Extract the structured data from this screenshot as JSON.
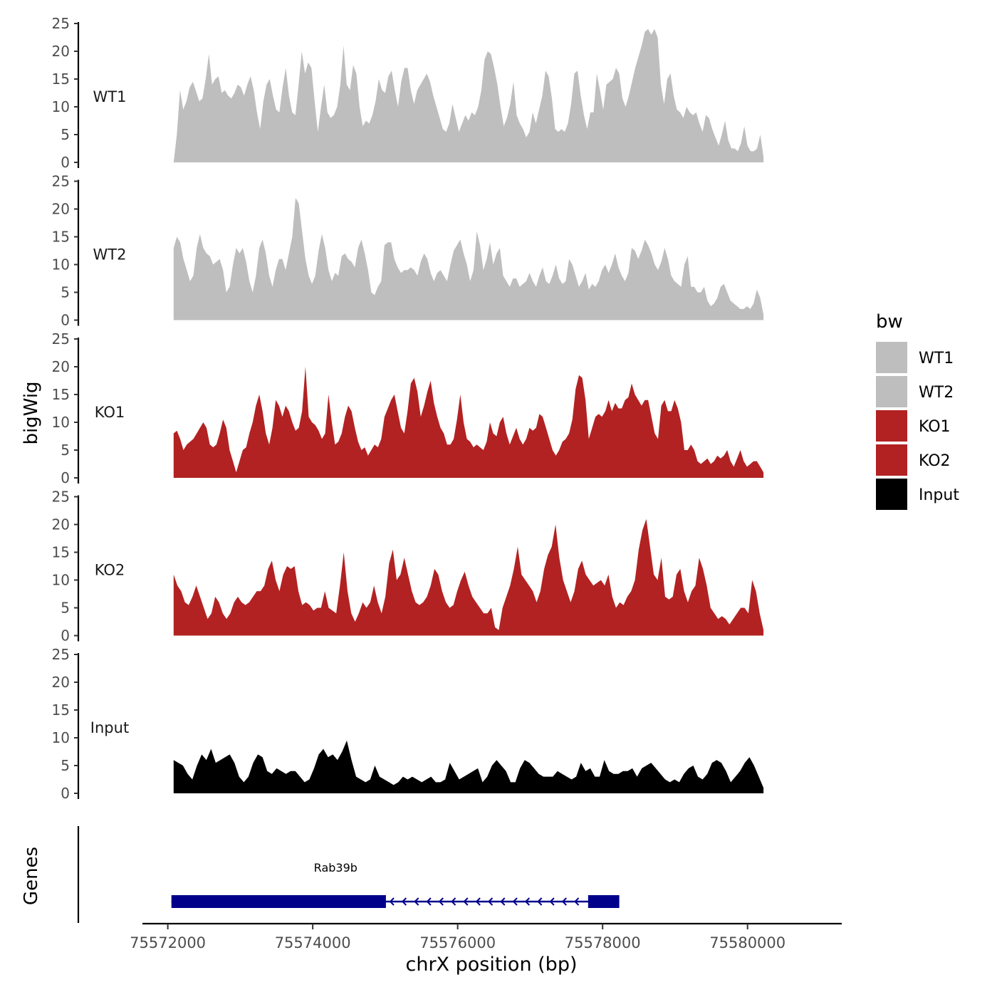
{
  "chart_data": {
    "type": "area",
    "y_axis_title": "bigWig",
    "x_axis_title": "chrX position (bp)",
    "genes_axis_title": "Genes",
    "xlim": [
      75571650,
      75581300
    ],
    "data_xrange": [
      75572080,
      75580220
    ],
    "ylim": [
      0,
      25
    ],
    "y_ticks": [
      0,
      5,
      10,
      15,
      20,
      25
    ],
    "x_ticks": [
      75572000,
      75574000,
      75576000,
      75578000,
      75580000
    ],
    "x_tick_labels": [
      "75572000",
      "75574000",
      "75576000",
      "75578000",
      "75580000"
    ],
    "legend": {
      "title": "bw",
      "entries": [
        {
          "label": "WT1",
          "color": "#bebebe"
        },
        {
          "label": "WT2",
          "color": "#bebebe"
        },
        {
          "label": "KO1",
          "color": "#b22222"
        },
        {
          "label": "KO2",
          "color": "#b22222"
        },
        {
          "label": "Input",
          "color": "#000000"
        }
      ]
    },
    "series": [
      {
        "name": "WT1",
        "color": "#bebebe",
        "values": [
          0,
          5,
          13,
          9.5,
          11,
          13.5,
          14.5,
          12.8,
          11,
          11.5,
          15,
          19.5,
          14,
          15,
          15.5,
          12.5,
          13,
          12,
          11.5,
          12.5,
          14,
          13.5,
          12,
          14,
          15.5,
          13,
          9,
          6,
          11,
          14,
          15,
          12,
          9.5,
          9,
          13.5,
          17,
          12,
          9,
          8.5,
          14,
          20,
          16,
          18,
          17,
          11,
          5.5,
          10,
          14,
          9,
          8,
          8.5,
          10,
          14,
          21,
          14,
          13,
          17.5,
          16,
          10,
          6.5,
          7.5,
          7,
          8.5,
          11,
          15,
          13,
          12.5,
          15.5,
          16.5,
          13,
          10,
          14.5,
          17,
          17,
          13,
          10.5,
          13,
          14,
          15,
          16,
          14.5,
          12,
          10,
          8,
          6,
          5.5,
          7,
          10.5,
          8,
          5.5,
          7,
          8.5,
          7.5,
          9,
          8.5,
          10,
          13,
          18.5,
          20,
          19.5,
          17,
          14,
          10,
          6.5,
          8,
          10.5,
          14.5,
          8.5,
          7,
          6,
          4.5,
          5.5,
          9,
          7,
          9.5,
          12,
          16.5,
          15.5,
          11.5,
          6,
          5.5,
          6,
          5.5,
          7,
          10.5,
          16,
          16.5,
          12,
          8.5,
          6,
          9,
          9,
          16,
          13,
          9.5,
          14,
          14.5,
          15,
          17,
          16,
          11.5,
          10,
          12,
          14.5,
          17,
          19,
          21,
          23.5,
          24,
          23,
          24,
          22.5,
          14,
          10.5,
          15,
          16,
          12,
          9.5,
          9,
          8,
          10,
          9,
          8.5,
          9,
          7,
          5.5,
          8.5,
          8,
          6,
          4.5,
          3,
          5,
          7.5,
          4,
          2.5,
          2.5,
          2,
          3.5,
          6.5,
          3,
          2,
          2,
          2.5,
          5,
          1
        ],
        "fills_hint": "values are read at evenly spaced positions across data_xrange"
      },
      {
        "name": "WT2",
        "color": "#bebebe",
        "values": [
          13,
          15,
          14,
          11,
          9,
          7,
          8,
          13,
          15.5,
          13,
          12,
          11.5,
          10,
          10.5,
          11,
          9,
          5,
          6,
          10,
          13,
          12,
          13,
          10.5,
          7,
          5,
          8,
          13,
          14.5,
          12,
          8,
          6,
          9,
          11,
          11,
          9,
          12,
          15,
          22,
          21,
          16,
          11,
          8,
          6.5,
          8,
          12.5,
          15.5,
          13,
          9,
          7,
          8.5,
          8,
          11.5,
          12,
          11,
          10.5,
          9.5,
          13,
          14.5,
          12,
          9,
          5,
          4.5,
          6,
          7,
          13.5,
          14,
          14,
          11,
          9.5,
          8.5,
          9,
          9,
          9.5,
          9,
          8,
          10.5,
          12,
          11,
          8.5,
          7,
          8.5,
          9,
          8,
          7,
          10,
          12.5,
          13.5,
          14.5,
          12,
          10,
          7,
          9,
          16,
          13.5,
          9,
          11,
          14,
          10,
          12,
          13,
          8,
          7,
          6,
          7.5,
          7.5,
          6,
          6.5,
          7,
          8.5,
          7,
          6,
          8,
          9.5,
          7,
          6.5,
          8,
          10,
          7.5,
          6.5,
          7,
          11,
          10,
          8,
          6,
          7,
          8.5,
          5.5,
          6.5,
          6,
          7,
          9,
          10,
          8.5,
          10,
          12,
          9.5,
          8,
          7,
          8.5,
          13,
          12.5,
          11,
          12.5,
          14.5,
          13.5,
          12,
          10,
          9,
          10.5,
          13,
          11,
          8,
          7,
          6.5,
          6,
          10,
          11.5,
          6,
          6,
          5,
          5,
          6,
          3.5,
          2.5,
          3,
          4,
          6,
          6.5,
          5,
          3.5,
          3,
          2.5,
          2,
          2,
          2.5,
          2,
          3,
          5.5,
          4,
          1
        ],
        "fills_hint": "values are read at evenly spaced positions across data_xrange"
      },
      {
        "name": "KO1",
        "color": "#b22222",
        "values": [
          8,
          8.5,
          7,
          5,
          6,
          6.5,
          7,
          8,
          9,
          10,
          9,
          6,
          5.5,
          6,
          8,
          10.5,
          9,
          5,
          3,
          1,
          3,
          5,
          5.5,
          8,
          10,
          13,
          15,
          12,
          8,
          6,
          9,
          14,
          13,
          11,
          13,
          12,
          10,
          8.5,
          9,
          12,
          20,
          11,
          10,
          9.5,
          8.5,
          7,
          8,
          15,
          10,
          6,
          6.5,
          8,
          11,
          13,
          12,
          9,
          6.5,
          5,
          5.5,
          4,
          5,
          6,
          5.5,
          7,
          11,
          12.5,
          14,
          15,
          12,
          9,
          8,
          12,
          17,
          18,
          15.5,
          11,
          13,
          15.5,
          17.5,
          13.5,
          11,
          9,
          8,
          6,
          6,
          7,
          10.5,
          15,
          10,
          7,
          6.5,
          5.5,
          6,
          5.5,
          5,
          6.5,
          10,
          8,
          7.5,
          10,
          11,
          8,
          6,
          7.5,
          9,
          7,
          6,
          7,
          9,
          8.5,
          9,
          11.5,
          11,
          9,
          7,
          5,
          4,
          5,
          6.5,
          7,
          8,
          10.5,
          16,
          18.5,
          18,
          14,
          7,
          9,
          11,
          11.5,
          11,
          12,
          14,
          12,
          13.5,
          12.5,
          12.5,
          14,
          14.5,
          17,
          15,
          14,
          13,
          14,
          14,
          11,
          8,
          7,
          13,
          14,
          12,
          12,
          14,
          12.5,
          10,
          5,
          5,
          6,
          5,
          3,
          2.5,
          3,
          3.5,
          2.5,
          3,
          4,
          3.5,
          4,
          5,
          3,
          2,
          3.5,
          5,
          3,
          2,
          2.5,
          3,
          3,
          2,
          1
        ],
        "fills_hint": "values are read at evenly spaced positions across data_xrange"
      },
      {
        "name": "KO2",
        "color": "#b22222",
        "values": [
          11,
          9,
          8,
          6,
          5.5,
          7,
          9,
          7,
          5,
          3,
          4,
          7,
          6,
          4,
          3,
          4,
          6,
          7,
          6,
          5.5,
          6,
          7,
          8,
          8,
          9,
          12,
          13.5,
          10,
          8,
          11,
          12.5,
          12,
          12.5,
          8,
          5.5,
          6,
          5.5,
          4.5,
          5,
          5,
          8,
          5,
          4.5,
          4,
          9,
          15,
          8,
          4,
          2.5,
          4,
          6,
          5,
          6,
          9,
          6,
          4,
          7,
          13,
          15.5,
          10,
          11,
          14,
          11,
          8,
          6,
          5.5,
          6,
          7,
          9,
          12,
          11,
          8,
          6,
          5,
          5.5,
          8,
          10,
          11.5,
          9,
          7,
          6,
          5,
          4,
          4,
          5,
          1.5,
          1,
          5,
          7,
          9,
          12,
          16,
          11,
          10,
          9,
          8,
          6,
          8,
          12,
          14.5,
          16,
          20,
          14,
          10,
          8,
          6,
          8,
          12,
          13.5,
          11,
          10,
          9,
          9.5,
          10,
          9,
          11,
          7,
          5,
          6,
          5.5,
          7,
          8,
          10,
          15.5,
          19,
          21,
          16,
          11,
          10,
          14,
          7,
          6.5,
          7,
          11,
          12,
          8,
          6,
          8,
          9,
          14,
          12,
          9,
          5,
          4,
          3,
          3.5,
          3,
          2,
          3,
          4,
          5,
          5,
          4,
          10,
          8,
          4,
          1
        ],
        "fills_hint": "values are read at evenly spaced positions across data_xrange"
      },
      {
        "name": "Input",
        "color": "#000000",
        "values": [
          6,
          5.5,
          5,
          3.5,
          2.5,
          5,
          7,
          6,
          8,
          5.5,
          6,
          6.5,
          7,
          5.5,
          3,
          2,
          3,
          5.5,
          7,
          6.5,
          4,
          3.5,
          4.5,
          4,
          3.5,
          4,
          4,
          3,
          2,
          2.5,
          4.5,
          7,
          8,
          6.5,
          7,
          6,
          7.5,
          9.5,
          6,
          3,
          2.5,
          2,
          2.5,
          5,
          3,
          2.5,
          2,
          1.5,
          2,
          3,
          2.5,
          3,
          2.5,
          2,
          2.5,
          3,
          2,
          2,
          2.5,
          5.5,
          4,
          2.5,
          3,
          3.5,
          4,
          4.5,
          2,
          3,
          5,
          6,
          5,
          4,
          2,
          2,
          4.5,
          6,
          5.5,
          4.5,
          3.5,
          3,
          3,
          3,
          4,
          3.5,
          3,
          2.5,
          3,
          5.5,
          4,
          4.5,
          3,
          3,
          6,
          4,
          3.5,
          3.5,
          4,
          4,
          4.5,
          3,
          4.5,
          5,
          5.5,
          4.5,
          3.5,
          2.5,
          2,
          2.5,
          2,
          3.5,
          4.5,
          5,
          3,
          2.5,
          3.5,
          5.5,
          6,
          5.5,
          4,
          2,
          3,
          4,
          5.5,
          6.5,
          5,
          3,
          1
        ],
        "fills_hint": "values are read at evenly spaced positions across data_xrange"
      }
    ],
    "genes": [
      {
        "name": "Rab39b",
        "strand": "-",
        "start": 75572050,
        "end": 75578230,
        "exons": [
          [
            75572050,
            75575010
          ],
          [
            75577800,
            75578230
          ]
        ]
      }
    ]
  }
}
